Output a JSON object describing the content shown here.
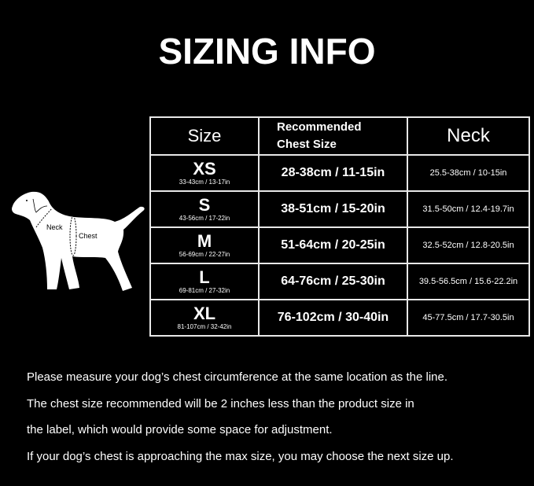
{
  "title": "SIZING INFO",
  "diagram_labels": {
    "neck": "Neck",
    "chest": "Chest"
  },
  "table": {
    "headers": {
      "size": "Size",
      "chest_line1": "Recommended",
      "chest_line2": "Chest Size",
      "neck": "Neck"
    },
    "rows": [
      {
        "size": "XS",
        "size_range": "33-43cm / 13-17in",
        "chest": "28-38cm / 11-15in",
        "neck": "25.5-38cm / 10-15in"
      },
      {
        "size": "S",
        "size_range": "43-56cm / 17-22in",
        "chest": "38-51cm / 15-20in",
        "neck": "31.5-50cm / 12.4-19.7in"
      },
      {
        "size": "M",
        "size_range": "56-69cm / 22-27in",
        "chest": "51-64cm / 20-25in",
        "neck": "32.5-52cm / 12.8-20.5in"
      },
      {
        "size": "L",
        "size_range": "69-81cm / 27-32in",
        "chest": "64-76cm / 25-30in",
        "neck": "39.5-56.5cm / 15.6-22.2in"
      },
      {
        "size": "XL",
        "size_range": "81-107cm / 32-42in",
        "chest": "76-102cm / 30-40in",
        "neck": "45-77.5cm / 17.7-30.5in"
      }
    ]
  },
  "notes": [
    "Please measure your dog’s chest circumference at the same location as the line.",
    "The chest size recommended will be 2 inches less than the product size in",
    "the label, which would provide some space for adjustment.",
    "If your dog’s chest is approaching the max size, you may choose the next size up."
  ]
}
